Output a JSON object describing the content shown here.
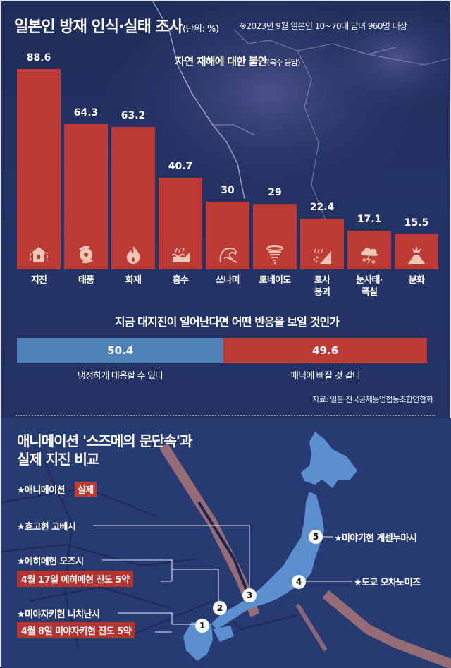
{
  "header": {
    "title": "일본인 방재 인식·실태 조사",
    "unit": "(단위: %)",
    "survey_note": "※2023년 9월 일본인 10~70대 남녀 960명 대상"
  },
  "chart1": {
    "title": "자연 재해에 대한 불안",
    "subtitle": "(복수 응답)",
    "bars": [
      {
        "label": "지진",
        "value": "88.6",
        "icon": "earthquake-house-icon"
      },
      {
        "label": "태풍",
        "value": "64.3",
        "icon": "typhoon-icon"
      },
      {
        "label": "화재",
        "value": "63.2",
        "icon": "fire-icon"
      },
      {
        "label": "홍수",
        "value": "40.7",
        "icon": "flood-icon"
      },
      {
        "label": "쓰나미",
        "value": "30",
        "icon": "tsunami-wave-icon"
      },
      {
        "label": "토네이도",
        "value": "29",
        "icon": "tornado-icon"
      },
      {
        "label": "토사\n붕괴",
        "value": "22.4",
        "icon": "landslide-icon"
      },
      {
        "label": "눈사태·\n폭설",
        "value": "17.1",
        "icon": "snowstorm-icon"
      },
      {
        "label": "분화",
        "value": "15.5",
        "icon": "volcano-icon"
      }
    ]
  },
  "chart2": {
    "title": "지금 대지진이 일어난다면 어떤 반응을 보일 것인가",
    "left": {
      "value": "50.4",
      "label": "냉정하게 대응할 수 있다"
    },
    "right": {
      "value": "49.6",
      "label": "패닉에 빠질 것 같다"
    }
  },
  "source": "자료: 일본 전국공제농업협동조합연합회",
  "section2": {
    "title_line1": "애니메이션 '스즈메의 문단속'과",
    "title_line2": "실제 지진 비교",
    "legend_anim": "★애니메이션",
    "legend_real": "실제",
    "places": [
      {
        "num": "1",
        "label": "★미야자키현 니치난시",
        "real": "4월 8일 미야자키현 진도 5약"
      },
      {
        "num": "2",
        "label": "★에히메현 오즈시",
        "real": "4월 17일 에히메현 진도 5약"
      },
      {
        "num": "3",
        "label": "★효고현 고베시",
        "real": ""
      },
      {
        "num": "4",
        "label": "★도쿄 오차노미즈",
        "real": ""
      },
      {
        "num": "5",
        "label": "★미야기현 게센누마시",
        "real": ""
      }
    ]
  },
  "colors": {
    "background": "#1f2e5e",
    "bar_red": "#bd3a37",
    "bar_blue": "#4f80b8",
    "japan_land": "#5b8fcf",
    "icon_fill": "#f0c7b4"
  },
  "chart_data": [
    {
      "type": "bar",
      "title": "자연 재해에 대한 불안(복수 응답)",
      "categories": [
        "지진",
        "태풍",
        "화재",
        "홍수",
        "쓰나미",
        "토네이도",
        "토사 붕괴",
        "눈사태·폭설",
        "분화"
      ],
      "values": [
        88.6,
        64.3,
        63.2,
        40.7,
        30,
        29,
        22.4,
        17.1,
        15.5
      ],
      "xlabel": "",
      "ylabel": "%",
      "ylim": [
        0,
        100
      ],
      "grid": false,
      "legend": "none"
    },
    {
      "type": "bar",
      "subtype": "stacked-100",
      "title": "지금 대지진이 일어난다면 어떤 반응을 보일 것인가",
      "categories": [
        "냉정하게 대응할 수 있다",
        "패닉에 빠질 것 같다"
      ],
      "values": [
        50.4,
        49.6
      ],
      "ylabel": "%"
    }
  ]
}
